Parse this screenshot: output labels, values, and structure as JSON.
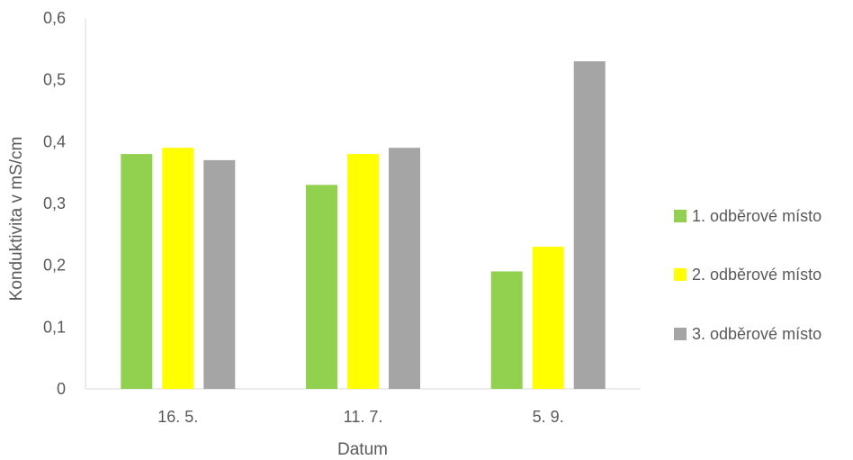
{
  "chart_data": {
    "type": "bar",
    "title": "",
    "xlabel": "Datum",
    "ylabel": "Konduktivita v mS/cm",
    "categories": [
      "16. 5.",
      "11. 7.",
      "5. 9."
    ],
    "series": [
      {
        "name": "1. odběrové místo",
        "color": "#92d050",
        "values": [
          0.38,
          0.33,
          0.19
        ]
      },
      {
        "name": "2. odběrové místo",
        "color": "#ffff00",
        "values": [
          0.39,
          0.38,
          0.23
        ]
      },
      {
        "name": "3. odběrové místo",
        "color": "#a5a5a5",
        "values": [
          0.37,
          0.39,
          0.53
        ]
      }
    ],
    "ylim": [
      0,
      0.6
    ],
    "yticks": [
      0,
      0.1,
      0.2,
      0.3,
      0.4,
      0.5,
      0.6
    ],
    "ytick_labels": [
      "0",
      "0,1",
      "0,2",
      "0,3",
      "0,4",
      "0,5",
      "0,6"
    ],
    "grid": false,
    "legend_position": "right"
  }
}
